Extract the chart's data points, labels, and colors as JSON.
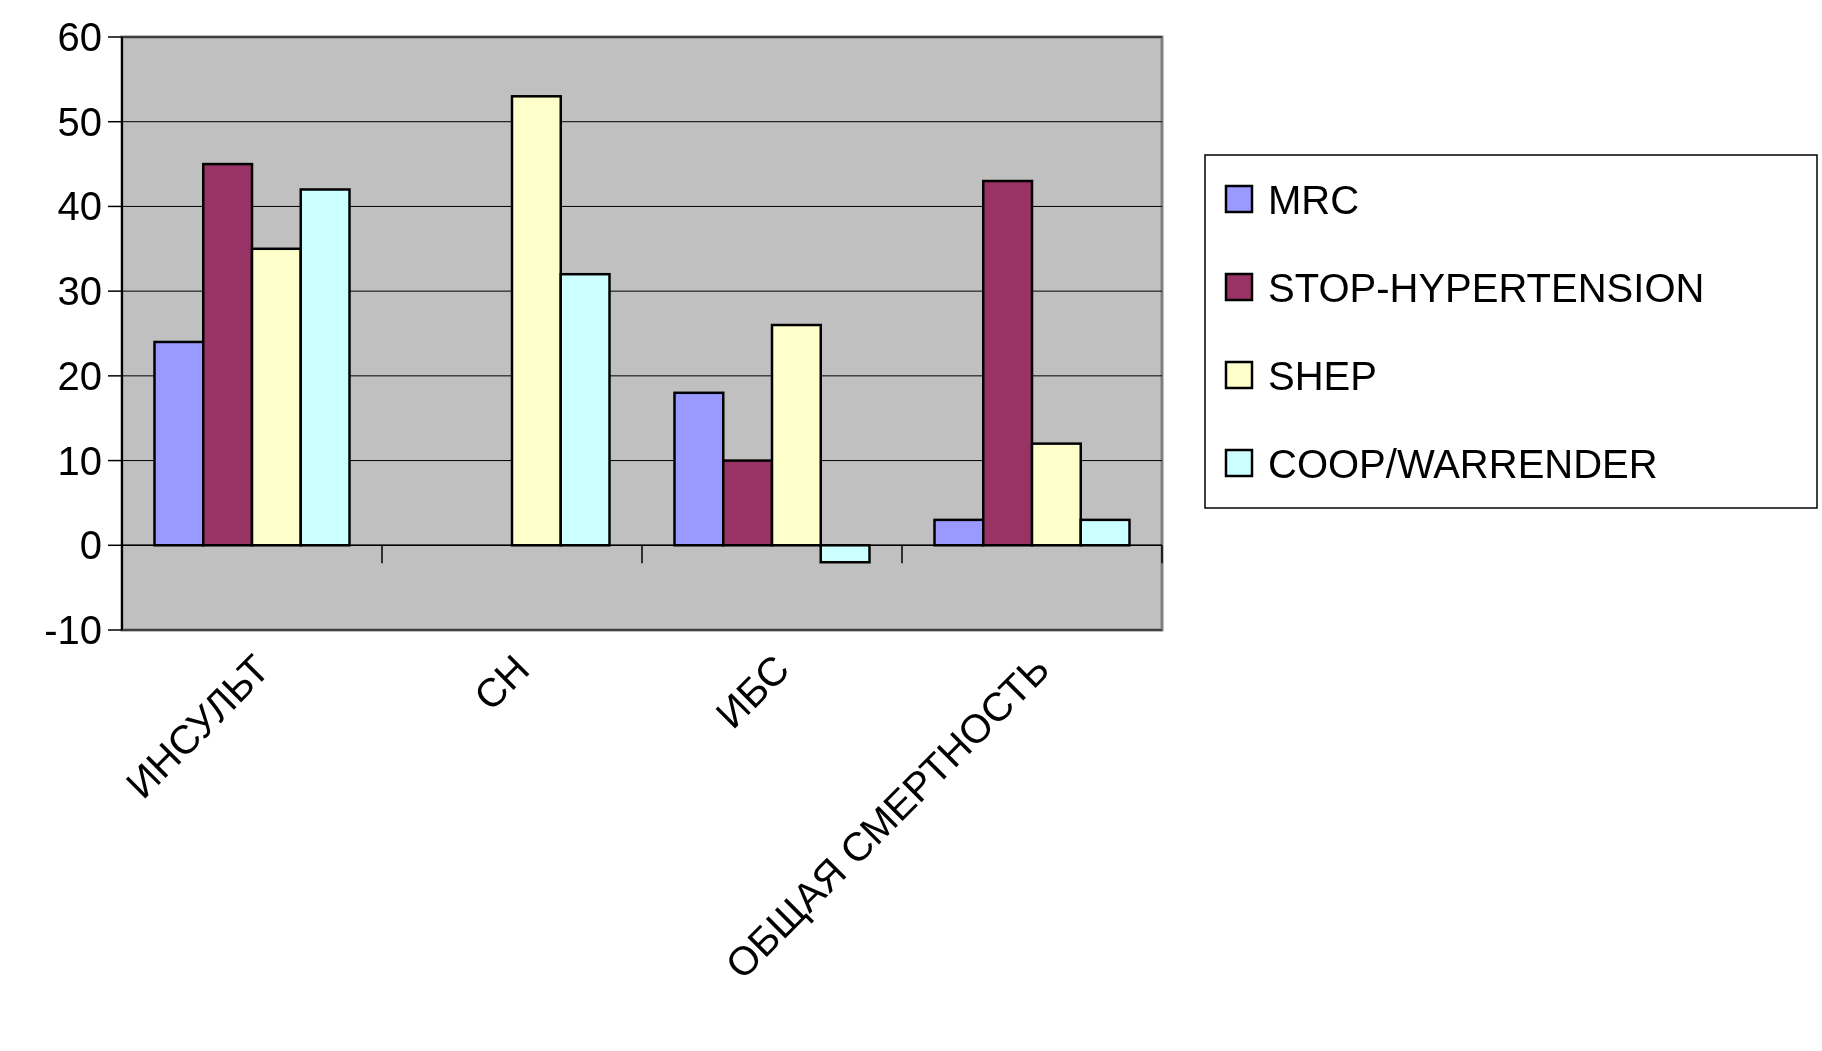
{
  "chart_data": {
    "type": "bar",
    "categories": [
      "ИНСУЛЬТ",
      "СН",
      "ИБС",
      "ОБЩАЯ СМЕРТНОСТЬ"
    ],
    "series": [
      {
        "name": "MRC",
        "color": "#9999ff",
        "values": [
          24,
          null,
          18,
          3
        ]
      },
      {
        "name": "STOP-HYPERTENSION",
        "color": "#993366",
        "values": [
          45,
          null,
          10,
          43
        ]
      },
      {
        "name": "SHEP",
        "color": "#ffffcc",
        "values": [
          35,
          53,
          26,
          12
        ]
      },
      {
        "name": "COOP/WARRENDER",
        "color": "#ccffff",
        "values": [
          42,
          32,
          -2,
          3
        ]
      }
    ],
    "ylim": [
      -10,
      60
    ],
    "yticks": [
      -10,
      0,
      10,
      20,
      30,
      40,
      50,
      60
    ],
    "grid": "y",
    "legend": "right"
  }
}
